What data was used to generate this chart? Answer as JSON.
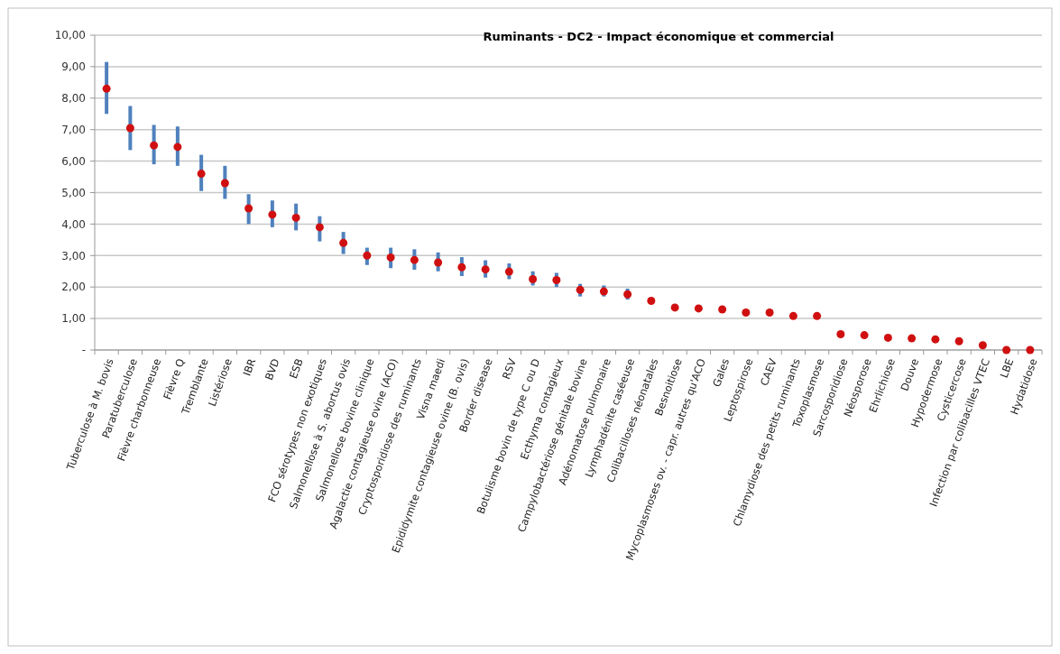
{
  "chart_data": {
    "type": "scatter",
    "title": "Ruminants - DC2 - Impact économique et commercial",
    "categories": [
      "Tuberculose à M. bovis",
      "Paratuberculose",
      "Fièvre charbonneuse",
      "Fièvre Q",
      "Tremblante",
      "Listériose",
      "IBR",
      "BVD",
      "ESB",
      "FCO sérotypes non exotiques",
      "Salmonellose à S. abortus ovis",
      "Salmonellose bovine clinique",
      "Agalactie contagieuse ovine (ACO)",
      "Cryptosporidiose des ruminants",
      "Visna maedi",
      "Epididymite contagieuse ovine (B. ovis)",
      "Border disease",
      "RSV",
      "Botulisme bovin de type C ou D",
      "Ecthyma contagieux",
      "Campylobactériose génitale bovine",
      "Adénomatose pulmonaire",
      "Lymphadénite caséeuse",
      "Colibacilloses néonatales",
      "Besnoitiose",
      "Mycoplasmoses ov. - capr. autres qu'ACO",
      "Gales",
      "Leptospirose",
      "CAEV",
      "Chlamydiose des petits ruminants",
      "Toxoplasmose",
      "Sarcosporidiose",
      "Néosporose",
      "Ehrlichiose",
      "Douve",
      "Hypodermose",
      "Cysticercose",
      "Infection par colibacilles VTEC",
      "LBE",
      "Hydatidose"
    ],
    "series": [
      {
        "color": "#d01010",
        "values": [
          8.3,
          7.05,
          6.5,
          6.45,
          5.6,
          5.3,
          4.5,
          4.3,
          4.2,
          3.9,
          3.4,
          3.0,
          2.94,
          2.86,
          2.78,
          2.63,
          2.56,
          2.49,
          2.25,
          2.22,
          1.91,
          1.86,
          1.77,
          1.56,
          1.35,
          1.32,
          1.29,
          1.19,
          1.19,
          1.08,
          1.08,
          0.5,
          0.47,
          0.39,
          0.37,
          0.34,
          0.28,
          0.15,
          0.0,
          0.0
        ],
        "errors": [
          [
            7.5,
            9.15
          ],
          [
            6.35,
            7.75
          ],
          [
            5.9,
            7.15
          ],
          [
            5.85,
            7.1
          ],
          [
            5.05,
            6.2
          ],
          [
            4.8,
            5.85
          ],
          [
            4.0,
            4.95
          ],
          [
            3.9,
            4.75
          ],
          [
            3.8,
            4.65
          ],
          [
            3.45,
            4.25
          ],
          [
            3.05,
            3.75
          ],
          [
            2.7,
            3.25
          ],
          [
            2.6,
            3.25
          ],
          [
            2.55,
            3.2
          ],
          [
            2.5,
            3.1
          ],
          [
            2.35,
            2.95
          ],
          [
            2.3,
            2.85
          ],
          [
            2.25,
            2.75
          ],
          [
            2.05,
            2.5
          ],
          [
            2.0,
            2.45
          ],
          [
            1.7,
            2.1
          ],
          [
            1.7,
            2.05
          ],
          [
            1.6,
            1.95
          ],
          null,
          null,
          null,
          null,
          null,
          null,
          null,
          null,
          null,
          null,
          null,
          null,
          null,
          null,
          null,
          null,
          null
        ]
      }
    ],
    "ylim": [
      0,
      10
    ],
    "yticks": [
      {
        "value": 0,
        "label": "-"
      },
      {
        "value": 1,
        "label": "1,00"
      },
      {
        "value": 2,
        "label": "2,00"
      },
      {
        "value": 3,
        "label": "3,00"
      },
      {
        "value": 4,
        "label": "4,00"
      },
      {
        "value": 5,
        "label": "5,00"
      },
      {
        "value": 6,
        "label": "6,00"
      },
      {
        "value": 7,
        "label": "7,00"
      },
      {
        "value": 8,
        "label": "8,00"
      },
      {
        "value": 9,
        "label": "9,00"
      },
      {
        "value": 10,
        "label": "10,00"
      }
    ],
    "grid": "y",
    "marker": "circle"
  }
}
